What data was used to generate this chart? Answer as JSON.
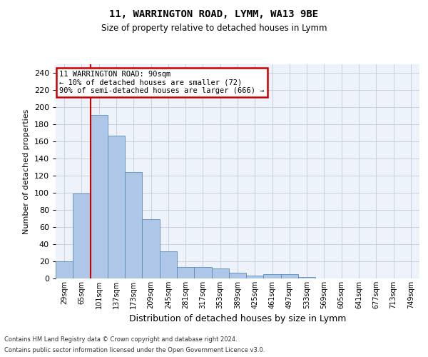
{
  "title1": "11, WARRINGTON ROAD, LYMM, WA13 9BE",
  "title2": "Size of property relative to detached houses in Lymm",
  "xlabel": "Distribution of detached houses by size in Lymm",
  "ylabel": "Number of detached properties",
  "bar_labels": [
    "29sqm",
    "65sqm",
    "101sqm",
    "137sqm",
    "173sqm",
    "209sqm",
    "245sqm",
    "281sqm",
    "317sqm",
    "353sqm",
    "389sqm",
    "425sqm",
    "461sqm",
    "497sqm",
    "533sqm",
    "569sqm",
    "605sqm",
    "641sqm",
    "677sqm",
    "713sqm",
    "749sqm"
  ],
  "bar_values": [
    20,
    99,
    191,
    167,
    124,
    69,
    32,
    13,
    13,
    12,
    7,
    3,
    5,
    5,
    2,
    0,
    0,
    0,
    0,
    0,
    0
  ],
  "bar_color": "#aec6e8",
  "bar_edge_color": "#5b8db8",
  "highlight_line_color": "#cc0000",
  "annotation_text_line1": "11 WARRINGTON ROAD: 90sqm",
  "annotation_text_line2": "← 10% of detached houses are smaller (72)",
  "annotation_text_line3": "90% of semi-detached houses are larger (666) →",
  "annotation_box_color": "#cc0000",
  "ylim": [
    0,
    250
  ],
  "yticks": [
    0,
    20,
    40,
    60,
    80,
    100,
    120,
    140,
    160,
    180,
    200,
    220,
    240
  ],
  "footer1": "Contains HM Land Registry data © Crown copyright and database right 2024.",
  "footer2": "Contains public sector information licensed under the Open Government Licence v3.0.",
  "bg_color": "#eef2fa",
  "grid_color": "#c8d0e0"
}
